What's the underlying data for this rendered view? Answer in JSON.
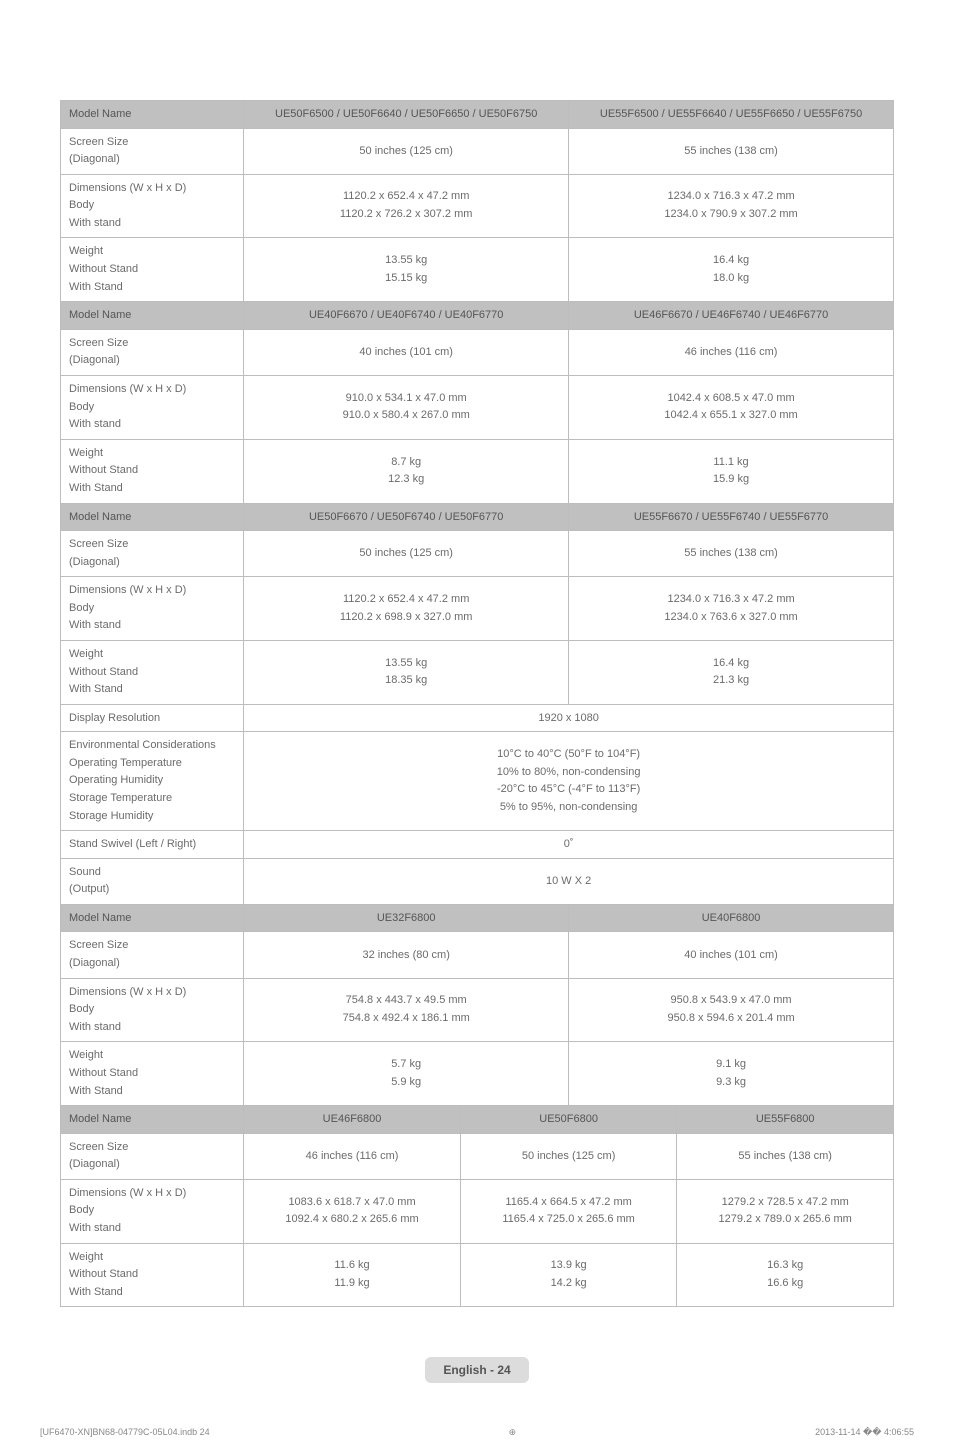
{
  "footer": {
    "text": "English - 24"
  },
  "colors": {
    "header_bg": "#c0c0c0",
    "border": "#bdbdbd",
    "text": "#6b6b6b",
    "badge_bg": "#dcdcdc"
  },
  "section1": {
    "h_model": "Model Name",
    "h_a": "UE50F6500 / UE50F6640 / UE50F6650 / UE50F6750",
    "h_b": "UE55F6500 / UE55F6640 / UE55F6650 / UE55F6750",
    "screen_label": "Screen Size\n(Diagonal)",
    "screen_a": "50 inches (125 cm)",
    "screen_b": "55 inches (138 cm)",
    "dim_label": "Dimensions (W x H x D)\nBody\nWith stand",
    "dim_a": "1120.2 x 652.4 x 47.2 mm\n1120.2 x 726.2 x 307.2 mm",
    "dim_b": "1234.0 x 716.3 x 47.2 mm\n1234.0 x 790.9 x 307.2 mm",
    "wt_label": "Weight\nWithout Stand\nWith Stand",
    "wt_a": "13.55 kg\n15.15 kg",
    "wt_b": "16.4 kg\n18.0 kg"
  },
  "section2": {
    "h_model": "Model Name",
    "h_a": "UE40F6670 / UE40F6740 / UE40F6770",
    "h_b": "UE46F6670 / UE46F6740 / UE46F6770",
    "screen_a": "40 inches (101 cm)",
    "screen_b": "46 inches (116 cm)",
    "dim_a": "910.0 x 534.1 x 47.0 mm\n910.0 x 580.4 x 267.0 mm",
    "dim_b": "1042.4 x 608.5 x 47.0 mm\n1042.4 x 655.1 x 327.0 mm",
    "wt_a": "8.7 kg\n12.3 kg",
    "wt_b": "11.1 kg\n15.9 kg"
  },
  "section3": {
    "h_model": "Model Name",
    "h_a": "UE50F6670 / UE50F6740 / UE50F6770",
    "h_b": "UE55F6670 / UE55F6740 / UE55F6770",
    "screen_a": "50 inches (125 cm)",
    "screen_b": "55 inches (138 cm)",
    "dim_a": "1120.2 x 652.4 x 47.2 mm\n1120.2 x 698.9 x 327.0 mm",
    "dim_b": "1234.0 x 716.3 x 47.2 mm\n1234.0 x 763.6 x 327.0 mm",
    "wt_a": "13.55 kg\n18.35 kg",
    "wt_b": "16.4 kg\n21.3 kg"
  },
  "common": {
    "screen_label": "Screen Size\n(Diagonal)",
    "dim_label": "Dimensions (W x H x D)\nBody\nWith stand",
    "wt_label": "Weight\nWithout Stand\nWith Stand",
    "disp_res_label": "Display Resolution",
    "disp_res_val": "1920 x 1080",
    "env_label": "Environmental Considerations\nOperating Temperature\nOperating Humidity\nStorage Temperature\nStorage Humidity",
    "env_val": "10°C to 40°C (50°F to 104°F)\n10% to 80%, non-condensing\n-20°C to 45°C (-4°F to 113°F)\n5% to 95%, non-condensing",
    "swivel_label": "Stand Swivel (Left / Right)",
    "swivel_val": "0˚",
    "sound_label": "Sound\n(Output)",
    "sound_val": "10 W X 2"
  },
  "section4": {
    "h_model": "Model Name",
    "h_a": "UE32F6800",
    "h_b": "UE40F6800",
    "screen_a": "32 inches (80 cm)",
    "screen_b": "40 inches (101 cm)",
    "dim_a": "754.8 x 443.7 x 49.5 mm\n754.8 x 492.4 x 186.1 mm",
    "dim_b": "950.8 x 543.9 x 47.0 mm\n950.8 x 594.6 x 201.4 mm",
    "wt_a": "5.7 kg\n5.9 kg",
    "wt_b": "9.1 kg\n9.3 kg"
  },
  "section5": {
    "h_model": "Model Name",
    "h_a": "UE46F6800",
    "h_b": "UE50F6800",
    "h_c": "UE55F6800",
    "screen_a": "46 inches (116 cm)",
    "screen_b": "50 inches (125 cm)",
    "screen_c": "55 inches (138 cm)",
    "dim_a": "1083.6 x 618.7 x 47.0 mm\n1092.4 x 680.2 x 265.6 mm",
    "dim_b": "1165.4 x 664.5 x 47.2 mm\n1165.4 x 725.0 x 265.6 mm",
    "dim_c": "1279.2 x 728.5 x 47.2 mm\n1279.2 x 789.0 x 265.6 mm",
    "wt_a": "11.6 kg\n11.9 kg",
    "wt_b": "13.9 kg\n14.2 kg",
    "wt_c": "16.3 kg\n16.6 kg"
  },
  "bottom": {
    "left": "[UF6470-XN]BN68-04779C-05L04.indb   24",
    "right": "2013-11-14   �� 4:06:55"
  }
}
